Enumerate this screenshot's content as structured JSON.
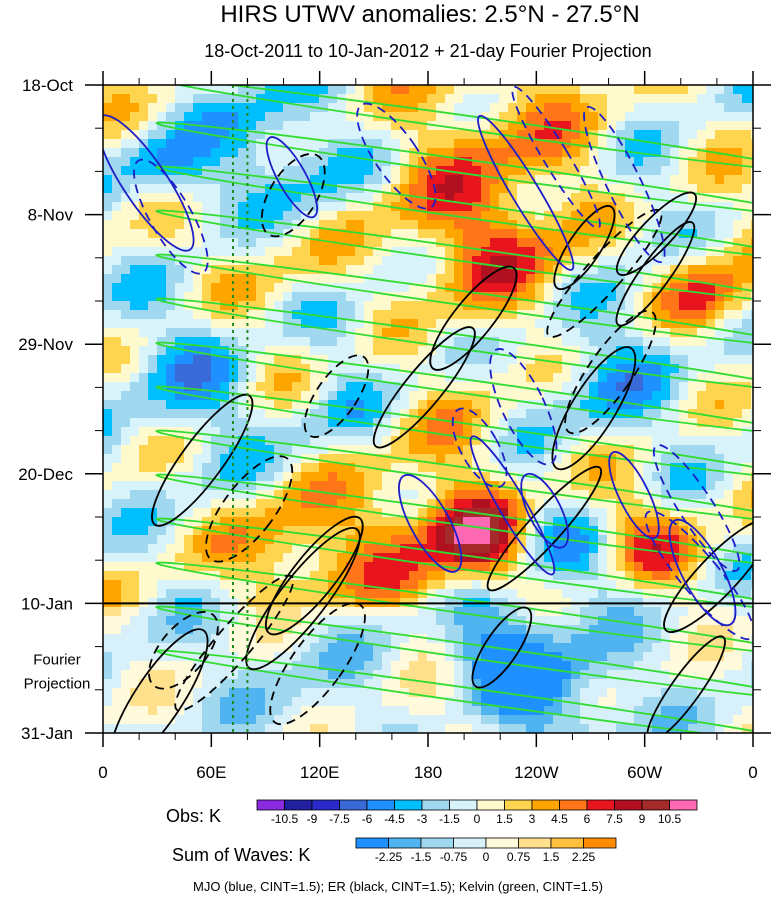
{
  "chart_data": {
    "type": "heatmap",
    "title": "HIRS UTWV anomalies: 2.5°N - 27.5°N",
    "subtitle": "18-Oct-2011 to 10-Jan-2012 + 21-day Fourier Projection",
    "y_tick_labels": [
      "18-Oct",
      "8-Nov",
      "29-Nov",
      "20-Dec",
      "10-Jan",
      "31-Jan"
    ],
    "y_extra_label": [
      "Fourier",
      "Projection"
    ],
    "x_tick_labels": [
      "0",
      "60E",
      "120E",
      "180",
      "120W",
      "60W",
      "0"
    ],
    "x_range_deg_east": [
      0,
      360
    ],
    "time_range": [
      "18-Oct-2011",
      "31-Jan-2012"
    ],
    "forecast_start": "10-Jan",
    "marker_longitudes_deg": [
      72,
      80
    ],
    "obs_colorbar": {
      "label": "Obs: K",
      "levels": [
        "-10.5",
        "-9",
        "-7.5",
        "-6",
        "-4.5",
        "-3",
        "-1.5",
        "0",
        "1.5",
        "3",
        "4.5",
        "6",
        "7.5",
        "9",
        "10.5"
      ],
      "colors": [
        "#8a2be2",
        "#2020a0",
        "#2a2acc",
        "#3a6ad8",
        "#1e90ff",
        "#00bfff",
        "#a0d8f0",
        "#d8f4fa",
        "#fffacd",
        "#ffd54f",
        "#ffa500",
        "#ff7518",
        "#e8141e",
        "#b01020",
        "#a52a2a",
        "#ff69b4"
      ]
    },
    "waves_colorbar": {
      "label": "Sum of Waves: K",
      "levels": [
        "-2.25",
        "-1.5",
        "-0.75",
        "0",
        "0.75",
        "1.5",
        "2.25"
      ],
      "colors": [
        "#1e90ff",
        "#50b4f0",
        "#a0d8f0",
        "#d8f0fa",
        "#fffadc",
        "#ffe08c",
        "#ffbe3c",
        "#ff8c00"
      ]
    },
    "contour_series": [
      {
        "name": "MJO",
        "color": "#1e1ec8",
        "cint": 1.5
      },
      {
        "name": "ER",
        "color": "#000000",
        "cint": 1.5
      },
      {
        "name": "Kelvin",
        "color": "#32dc32",
        "cint": 1.5
      }
    ],
    "footer": "MJO (blue, CINT=1.5); ER (black, CINT=1.5); Kelvin (green, CINT=1.5)"
  }
}
